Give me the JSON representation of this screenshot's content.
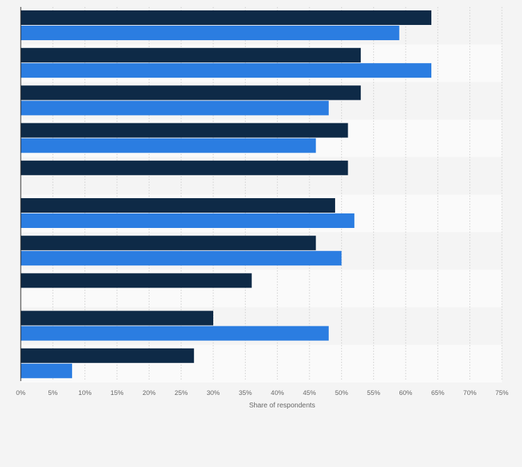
{
  "chart_data": {
    "type": "bar",
    "orientation": "horizontal",
    "categories": [
      "",
      "",
      "",
      "",
      "",
      "",
      "",
      "",
      "",
      ""
    ],
    "series": [
      {
        "values": [
          64,
          53,
          53,
          51,
          51,
          49,
          46,
          36,
          30,
          27
        ]
      },
      {
        "values": [
          59,
          64,
          48,
          46,
          null,
          52,
          50,
          null,
          48,
          8
        ]
      }
    ],
    "xlabel": "Share of respondents",
    "ylabel": "",
    "xlim": [
      0,
      75
    ],
    "x_ticks": [
      "0%",
      "5%",
      "10%",
      "15%",
      "20%",
      "25%",
      "30%",
      "35%",
      "40%",
      "45%",
      "50%",
      "55%",
      "60%",
      "65%",
      "70%",
      "75%"
    ],
    "grid": true,
    "legend": "none",
    "colors": {
      "series_0": "#0e2a47",
      "series_1": "#2b7de1",
      "band_a": "#f4f4f4",
      "band_b": "#fafafa",
      "grid": "#d4d4d4",
      "axis": "#222222",
      "tick_text": "#666666"
    }
  }
}
